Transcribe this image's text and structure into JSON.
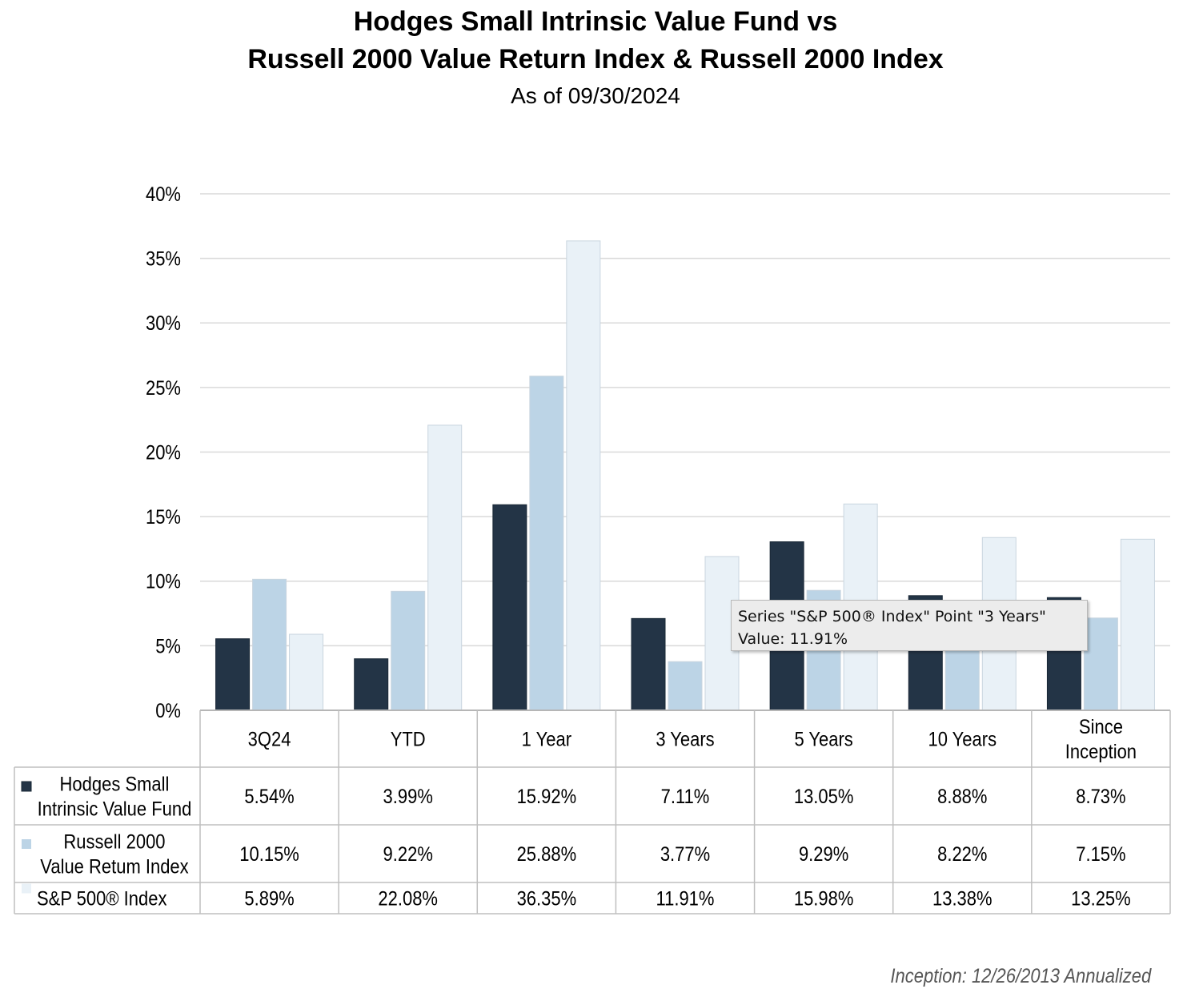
{
  "title_line1": "Hodges Small Intrinsic Value Fund vs",
  "title_line2": "Russell 2000 Value Return Index & Russell 2000 Index",
  "subtitle": "As of 09/30/2024",
  "footnote": "Inception: 12/26/2013 Annualized",
  "tooltip": {
    "line1": "Series \"S&P 500® Index\" Point \"3 Years\"",
    "line2": "Value: 11.91%"
  },
  "colors": {
    "hodges": "#233446",
    "russell_value": "#bcd4e6",
    "sp500": "#e9f1f7",
    "grid": "#d9d9d9",
    "table_border": "#bfbfbf"
  },
  "chart_data": {
    "type": "bar",
    "categories": [
      "3Q24",
      "YTD",
      "1 Year",
      "3 Years",
      "5 Years",
      "10 Years",
      "Since\nInception"
    ],
    "series": [
      {
        "name": "Hodges Small\nIntrinsic Value Fund",
        "color": "#233446",
        "values": [
          5.54,
          3.99,
          15.92,
          7.11,
          13.05,
          8.88,
          8.73
        ],
        "labels": [
          "5.54%",
          "3.99%",
          "15.92%",
          "7.11%",
          "13.05%",
          "8.88%",
          "8.73%"
        ]
      },
      {
        "name": "Russell 2000\nValue Retum Index",
        "color": "#bcd4e6",
        "values": [
          10.15,
          9.22,
          25.88,
          3.77,
          9.29,
          8.22,
          7.15
        ],
        "labels": [
          "10.15%",
          "9.22%",
          "25.88%",
          "3.77%",
          "9.29%",
          "8.22%",
          "7.15%"
        ]
      },
      {
        "name": "S&P 500® Index",
        "color": "#e9f1f7",
        "values": [
          5.89,
          22.08,
          36.35,
          11.91,
          15.98,
          13.38,
          13.25
        ],
        "labels": [
          "5.89%",
          "22.08%",
          "36.35%",
          "11.91%",
          "15.98%",
          "13.38%",
          "13.25%"
        ]
      }
    ],
    "ylim": [
      0,
      40
    ],
    "yticks": [
      0,
      5,
      10,
      15,
      20,
      25,
      30,
      35,
      40
    ],
    "ytick_labels": [
      "0%",
      "5%",
      "10%",
      "15%",
      "20%",
      "25%",
      "30%",
      "35%",
      "40%"
    ],
    "grid": true,
    "legend": "data-table-left"
  }
}
